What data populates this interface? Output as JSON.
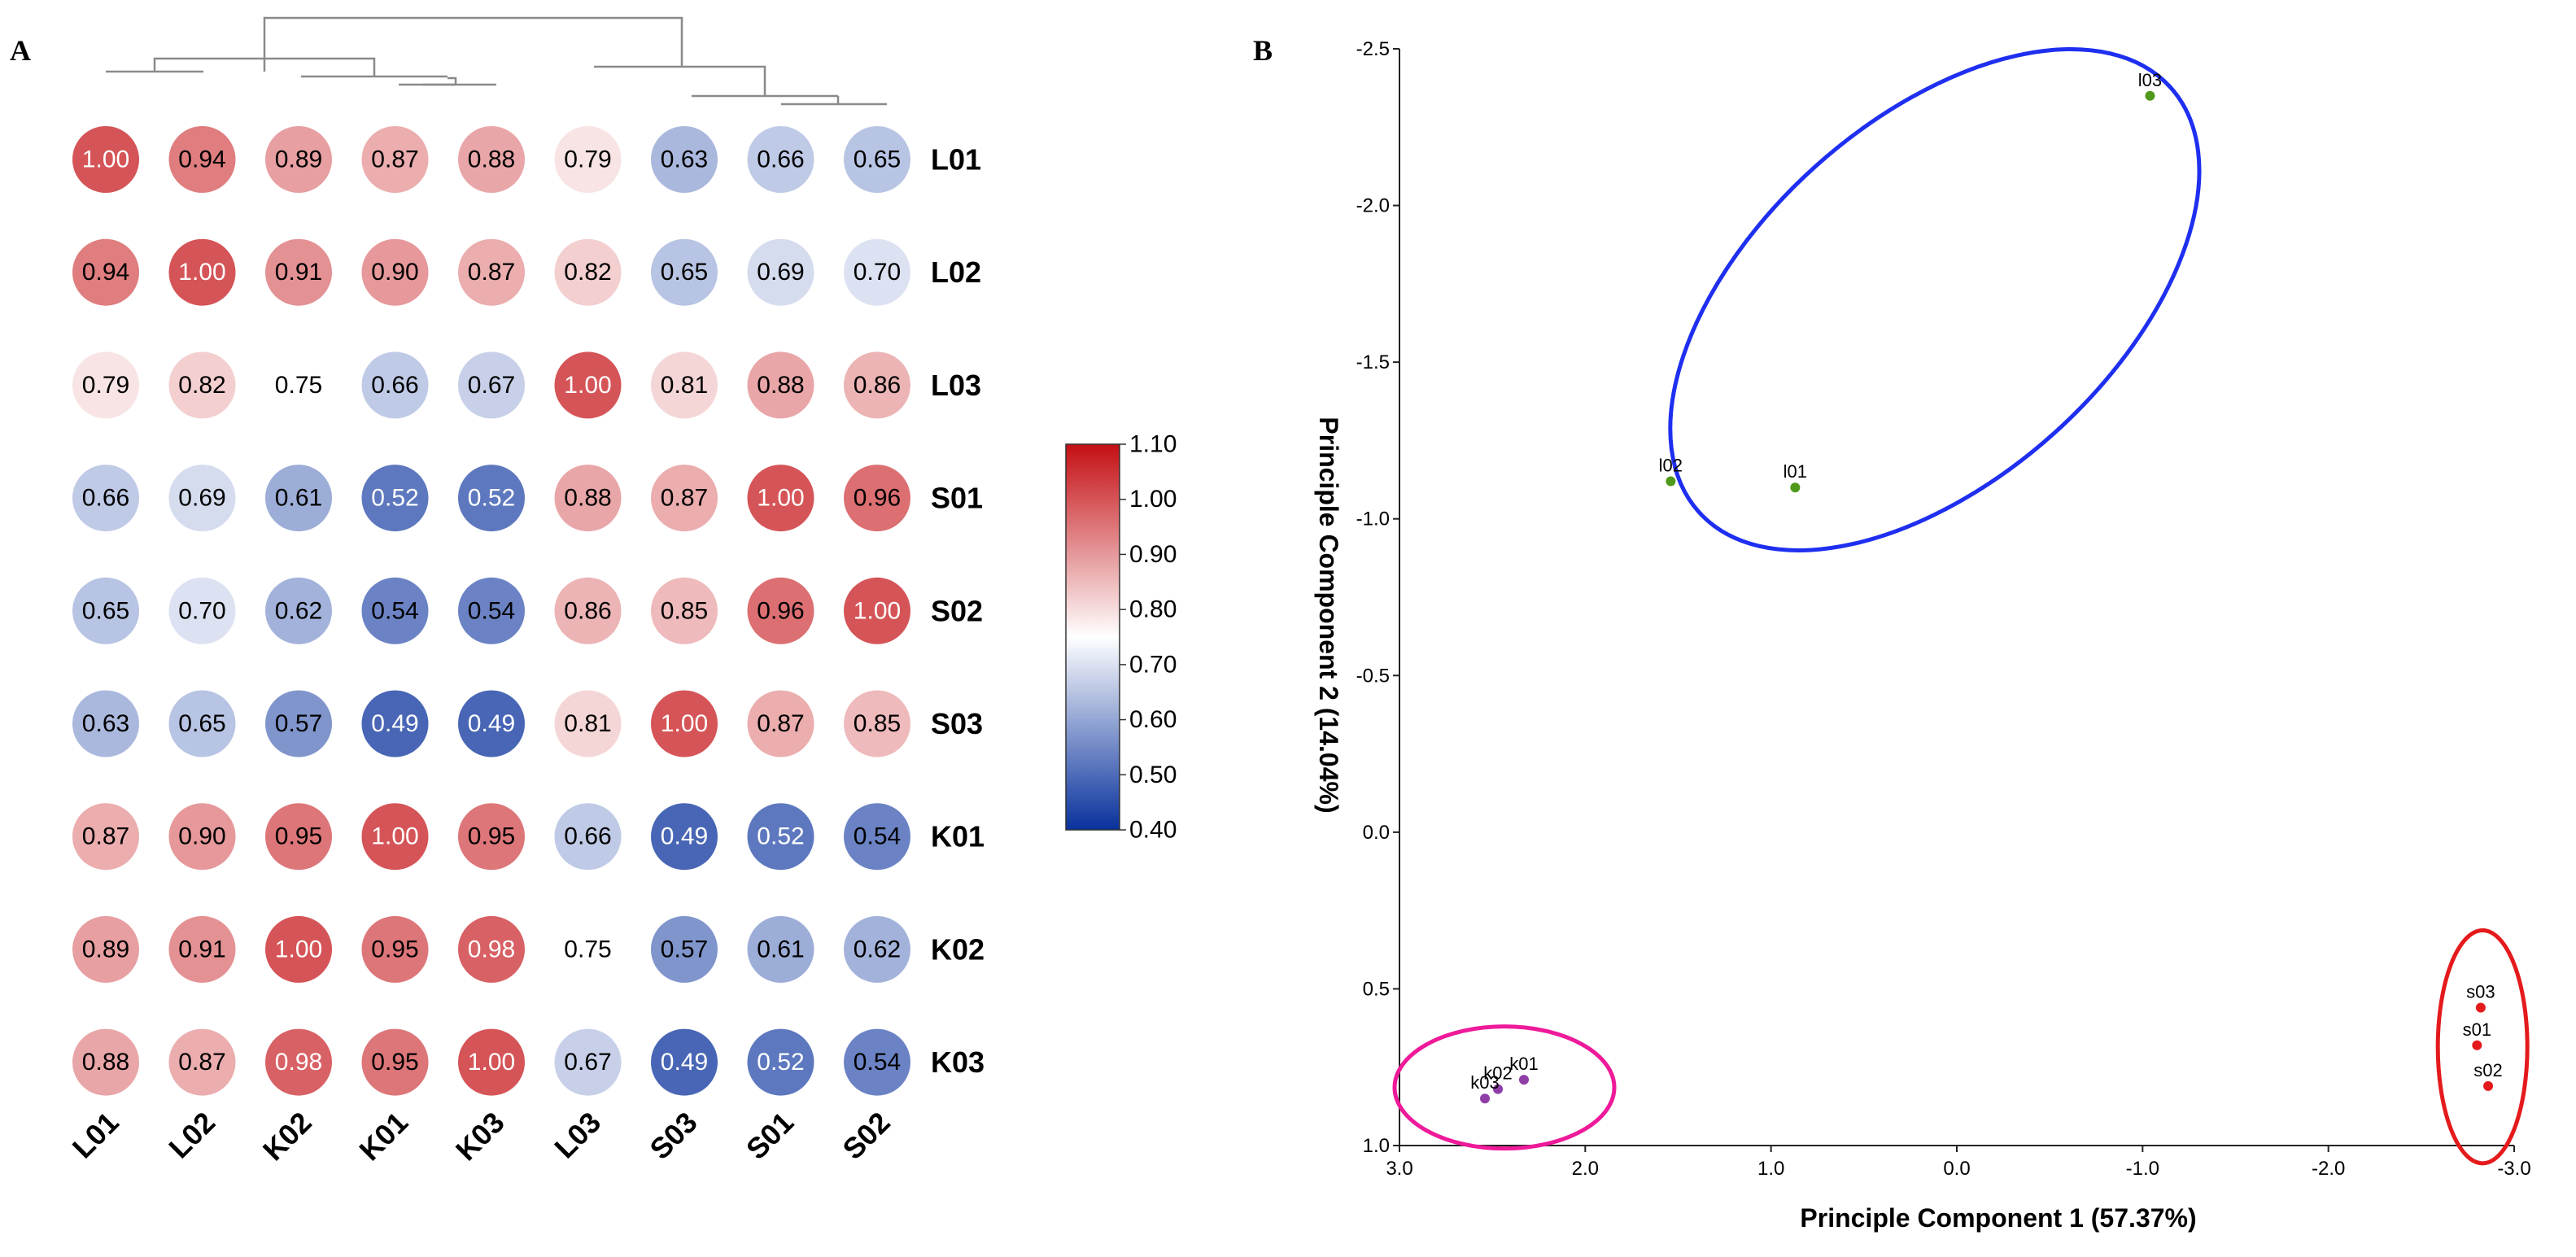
{
  "panel_a_letter": "A",
  "panel_b_letter": "B",
  "chart_data": [
    {
      "type": "heatmap",
      "title": "",
      "row_labels": [
        "L01",
        "L02",
        "L03",
        "S01",
        "S02",
        "S03",
        "K01",
        "K02",
        "K03"
      ],
      "col_labels": [
        "L01",
        "L02",
        "K02",
        "K01",
        "K03",
        "L03",
        "S03",
        "S01",
        "S02"
      ],
      "values": [
        [
          1.0,
          0.94,
          0.89,
          0.87,
          0.88,
          0.79,
          0.63,
          0.66,
          0.65
        ],
        [
          0.94,
          1.0,
          0.91,
          0.9,
          0.87,
          0.82,
          0.65,
          0.69,
          0.7
        ],
        [
          0.79,
          0.82,
          0.75,
          0.66,
          0.67,
          1.0,
          0.81,
          0.88,
          0.86
        ],
        [
          0.66,
          0.69,
          0.61,
          0.52,
          0.52,
          0.88,
          0.87,
          1.0,
          0.96
        ],
        [
          0.65,
          0.7,
          0.62,
          0.54,
          0.54,
          0.86,
          0.85,
          0.96,
          1.0
        ],
        [
          0.63,
          0.65,
          0.57,
          0.49,
          0.49,
          0.81,
          1.0,
          0.87,
          0.85
        ],
        [
          0.87,
          0.9,
          0.95,
          1.0,
          0.95,
          0.66,
          0.49,
          0.52,
          0.54
        ],
        [
          0.89,
          0.91,
          1.0,
          0.95,
          0.98,
          0.75,
          0.57,
          0.61,
          0.62
        ],
        [
          0.88,
          0.87,
          0.98,
          0.95,
          1.0,
          0.67,
          0.49,
          0.52,
          0.54
        ]
      ],
      "value_labels": [
        [
          "1.00",
          "0.94",
          "0.89",
          "0.87",
          "0.88",
          "0.79",
          "0.63",
          "0.66",
          "0.65"
        ],
        [
          "0.94",
          "1.00",
          "0.91",
          "0.90",
          "0.87",
          "0.82",
          "0.65",
          "0.69",
          "0.70"
        ],
        [
          "0.79",
          "0.82",
          "0.75",
          "0.66",
          "0.67",
          "1.00",
          "0.81",
          "0.88",
          "0.86"
        ],
        [
          "0.66",
          "0.69",
          "0.61",
          "0.52",
          "0.52",
          "0.88",
          "0.87",
          "1.00",
          "0.96"
        ],
        [
          "0.65",
          "0.70",
          "0.62",
          "0.54",
          "0.54",
          "0.86",
          "0.85",
          "0.96",
          "1.00"
        ],
        [
          "0.63",
          "0.65",
          "0.57",
          "0.49",
          "0.49",
          "0.81",
          "1.00",
          "0.87",
          "0.85"
        ],
        [
          "0.87",
          "0.90",
          "0.95",
          "1.00",
          "0.95",
          "0.66",
          "0.49",
          "0.52",
          "0.54"
        ],
        [
          "0.89",
          "0.91",
          "1.00",
          "0.95",
          "0.98",
          "0.75",
          "0.57",
          "0.61",
          "0.62"
        ],
        [
          "0.88",
          "0.87",
          "0.98",
          "0.95",
          "1.00",
          "0.67",
          "0.49",
          "0.52",
          "0.54"
        ]
      ],
      "colorbar": {
        "range": [
          0.4,
          1.1
        ],
        "ticks": [
          "1.10",
          "1.00",
          "0.90",
          "0.80",
          "0.70",
          "0.60",
          "0.50",
          "0.40"
        ],
        "tick_values": [
          1.1,
          1.0,
          0.9,
          0.8,
          0.7,
          0.6,
          0.5,
          0.4
        ],
        "colors": {
          "low": "#08319c",
          "mid": "#ffffff",
          "high": "#c40f14"
        },
        "mid_value": 0.75
      },
      "dendrogram": true
    },
    {
      "type": "scatter",
      "title": "",
      "xlabel": "Principle Component 1 (57.37%)",
      "ylabel": "Principle Component 2 (14.04%)",
      "xlim": [
        3.0,
        -3.0
      ],
      "ylim": [
        -2.5,
        1.0
      ],
      "x_ticks": [
        3.0,
        2.0,
        1.0,
        0.0,
        -1.0,
        -2.0,
        -3.0
      ],
      "x_tick_labels": [
        "3.0",
        "2.0",
        "1.0",
        "0.0",
        "-1.0",
        "-2.0",
        "-3.0"
      ],
      "y_ticks": [
        -2.5,
        -2.0,
        -1.5,
        -1.0,
        -0.5,
        0.0,
        0.5,
        1.0
      ],
      "y_tick_labels": [
        "-2.5",
        "-2.0",
        "-1.5",
        "-1.0",
        "-0.5",
        "0.0",
        "0.5",
        "1.0"
      ],
      "points": [
        {
          "label": "l03",
          "x": -1.04,
          "y": -2.35,
          "group": "l"
        },
        {
          "label": "l02",
          "x": 1.54,
          "y": -1.12,
          "group": "l"
        },
        {
          "label": "l01",
          "x": 0.87,
          "y": -1.1,
          "group": "l"
        },
        {
          "label": "k01",
          "x": 2.33,
          "y": 0.79,
          "group": "k"
        },
        {
          "label": "k02",
          "x": 2.47,
          "y": 0.82,
          "group": "k"
        },
        {
          "label": "k03",
          "x": 2.54,
          "y": 0.85,
          "group": "k"
        },
        {
          "label": "s03",
          "x": -2.82,
          "y": 0.56,
          "group": "s"
        },
        {
          "label": "s01",
          "x": -2.8,
          "y": 0.68,
          "group": "s"
        },
        {
          "label": "s02",
          "x": -2.86,
          "y": 0.81,
          "group": "s"
        }
      ],
      "group_colors": {
        "l": "#4f9a1c",
        "k": "#8e3ea6",
        "s": "#e41a1c"
      },
      "ellipse_colors": {
        "l": "#1f2ff0",
        "k": "#ee1a9a",
        "s": "#e41a1c"
      }
    }
  ]
}
